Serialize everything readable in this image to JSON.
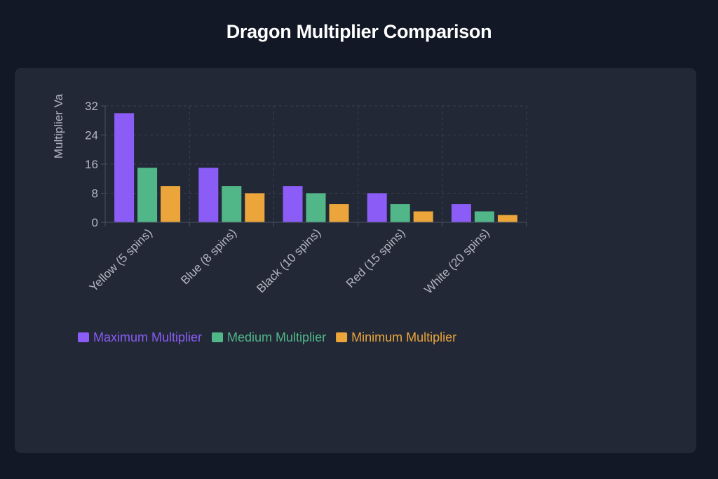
{
  "page": {
    "title": "Dragon Multiplier Comparison"
  },
  "colors": {
    "background": "#121826",
    "card": "#222836",
    "grid": "#3a4152",
    "axis": "#4b5263",
    "text": "#b3b7c0",
    "title": "#ffffff"
  },
  "chart_data": {
    "type": "bar",
    "title": "",
    "xlabel": "",
    "ylabel": "Multiplier Va",
    "ylim": [
      0,
      32
    ],
    "yticks": [
      0,
      8,
      16,
      24,
      32
    ],
    "grid": true,
    "legend_placement": "bottom-left",
    "categories": [
      "Yellow (5 spins)",
      "Blue (8 spins)",
      "Black (10 spins)",
      "Red (15 spins)",
      "White (20 spins)"
    ],
    "series": [
      {
        "name": "Maximum Multiplier",
        "color": "#8b5cf6",
        "values": [
          30,
          15,
          10,
          8,
          5
        ]
      },
      {
        "name": "Medium Multiplier",
        "color": "#52b788",
        "values": [
          15,
          10,
          8,
          5,
          3
        ]
      },
      {
        "name": "Minimum Multiplier",
        "color": "#eba53b",
        "values": [
          10,
          8,
          5,
          3,
          2
        ]
      }
    ]
  }
}
